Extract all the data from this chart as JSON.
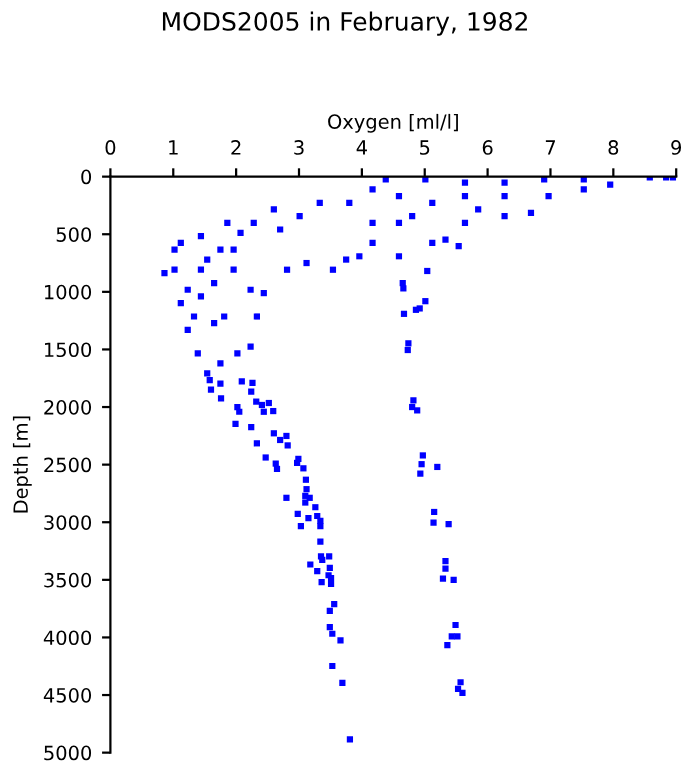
{
  "chart_data": {
    "type": "scatter",
    "title": "MODS2005 in February, 1982",
    "xlabel": "Oxygen [ml/l]",
    "ylabel": "Depth [m]",
    "xlim": [
      0,
      9
    ],
    "xticks": [
      0,
      1,
      2,
      3,
      4,
      5,
      6,
      7,
      8,
      9
    ],
    "ylim": [
      5000,
      0
    ],
    "yticks": [
      0,
      500,
      1000,
      1500,
      2000,
      2500,
      3000,
      3500,
      4000,
      4500,
      5000
    ],
    "grid": false,
    "legend": false,
    "marker": "square",
    "series": [
      {
        "color": "#0000ff",
        "x": [
          1.58,
          1.6,
          1.75,
          1.76,
          2.09,
          2.26,
          2.24,
          2.02,
          2.05,
          1.99,
          2.24,
          2.32,
          2.41,
          2.52,
          2.59,
          2.44,
          2.33,
          2.6,
          2.8,
          2.7,
          2.82,
          2.47,
          2.63,
          2.65,
          2.99,
          2.97,
          3.07,
          3.11,
          3.12,
          3.1,
          3.1,
          3.17,
          2.8,
          2.98,
          3.26,
          3.29,
          3.15,
          3.34,
          3.34,
          3.03,
          3.34,
          3.35,
          3.48,
          3.37,
          3.18,
          3.29,
          3.49,
          3.47,
          3.51,
          3.36,
          3.51,
          3.56,
          3.49,
          3.49,
          3.53,
          3.66,
          3.53,
          3.69,
          3.81,
          4.82,
          4.8,
          4.88,
          4.97,
          4.95,
          4.93,
          5.2,
          5.15,
          5.14,
          5.38,
          5.33,
          5.33,
          5.29,
          5.46,
          5.49,
          5.43,
          5.52,
          5.36,
          5.57,
          5.53,
          5.6,
          4.65,
          4.66,
          5.01,
          4.86,
          4.92,
          4.67,
          4.74,
          4.73,
          5.04,
          4.38,
          5.01,
          5.64,
          6.27,
          6.9,
          7.53,
          7.95,
          8.58,
          8.84,
          8.95,
          5.12,
          5.85,
          6.69,
          5.64,
          5.33,
          5.12,
          5.54,
          4.59,
          4.17,
          3.96,
          3.54,
          3.75,
          3.12,
          2.81,
          3.33,
          3.01,
          2.7,
          2.6,
          2.28,
          2.07,
          1.86,
          1.44,
          1.12,
          1.02,
          0.86,
          1.02,
          1.23,
          1.12,
          1.44,
          1.65,
          1.96,
          2.23,
          2.44,
          1.33,
          1.23,
          1.65,
          1.81,
          2.33,
          2.23,
          2.02,
          1.75,
          1.39,
          1.54,
          3.8,
          4.17,
          4.59,
          4.59,
          4.17,
          4.8,
          6.27,
          5.64,
          7.53,
          6.27,
          6.97,
          1.75,
          1.44,
          1.54,
          1.96
        ],
        "values": [
          1766,
          1848,
          1796,
          1924,
          1778,
          1790,
          1866,
          2000,
          2041,
          2146,
          2175,
          1953,
          1982,
          1965,
          2035,
          2041,
          2315,
          2228,
          2251,
          2286,
          2333,
          2438,
          2491,
          2537,
          2450,
          2485,
          2532,
          2631,
          2713,
          2771,
          2829,
          2788,
          2788,
          2928,
          2870,
          2946,
          2964,
          2987,
          3034,
          3034,
          3168,
          3297,
          3297,
          3326,
          3367,
          3425,
          3396,
          3460,
          3484,
          3519,
          3536,
          3711,
          3770,
          3910,
          3968,
          4026,
          4248,
          4394,
          4885,
          1942,
          2000,
          2029,
          2420,
          2496,
          2578,
          2520,
          2911,
          3004,
          3016,
          3337,
          3402,
          3489,
          3501,
          3892,
          3991,
          3991,
          4067,
          4389,
          4447,
          4482,
          924,
          970,
          1081,
          1156,
          1144,
          1191,
          1447,
          1505,
          819,
          23,
          23,
          52,
          52,
          23,
          23,
          70,
          6,
          6,
          6,
          227,
          285,
          314,
          401,
          546,
          575,
          604,
          691,
          575,
          691,
          808,
          720,
          750,
          808,
          227,
          343,
          459,
          285,
          401,
          488,
          401,
          517,
          575,
          633,
          837,
          808,
          982,
          1098,
          1040,
          924,
          808,
          982,
          1011,
          1214,
          1330,
          1272,
          1214,
          1214,
          1476,
          1534,
          1621,
          1534,
          1708,
          227,
          110,
          169,
          401,
          401,
          343,
          343,
          169,
          110,
          169,
          169,
          633,
          808,
          720,
          633
        ]
      }
    ]
  }
}
